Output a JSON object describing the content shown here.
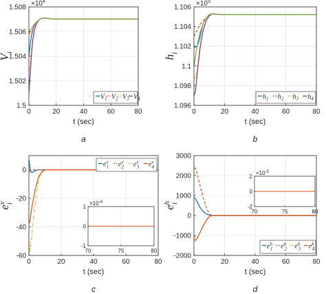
{
  "figure": {
    "colors": [
      "#0072BD",
      "#D95319",
      "#EDB120",
      "#7E2F8E",
      "#77AC30"
    ]
  },
  "chart_data": [
    {
      "type": "line",
      "id": "a",
      "caption": "a",
      "ylabel_main": "V",
      "ylabel_sub": "i",
      "xlabel": "t (sec)",
      "exponent_base": "×10",
      "exponent_power": "4",
      "xlim": [
        0,
        80
      ],
      "ylim": [
        1.5,
        1.508
      ],
      "xticks": [
        0,
        20,
        40,
        60,
        80
      ],
      "yticks": [
        1.5,
        1.502,
        1.504,
        1.506,
        1.508
      ],
      "ytick_labels": [
        "1.5",
        "1.502",
        "1.504",
        "1.506",
        "1.508"
      ],
      "legend_position": "bottom-right",
      "series": [
        {
          "name": "V",
          "sub": "1",
          "style": "solid",
          "color": "#0072BD",
          "x": [
            0,
            1,
            2,
            3,
            4,
            5,
            6,
            7,
            8,
            10,
            12,
            15,
            20,
            30,
            80
          ],
          "y": [
            1.504,
            1.505,
            1.5057,
            1.5062,
            1.5065,
            1.5067,
            1.5068,
            1.5069,
            1.507,
            1.5071,
            1.5071,
            1.50705,
            1.507,
            1.507,
            1.507
          ]
        },
        {
          "name": "V",
          "sub": "2",
          "style": "dashed",
          "color": "#D95319",
          "x": [
            0,
            1,
            2,
            3,
            4,
            5,
            6,
            7,
            8,
            10,
            12,
            15,
            20,
            30,
            80
          ],
          "y": [
            1.506,
            1.5058,
            1.5059,
            1.5062,
            1.5065,
            1.5067,
            1.5068,
            1.5069,
            1.507,
            1.5071,
            1.5071,
            1.50705,
            1.507,
            1.507,
            1.507
          ]
        },
        {
          "name": "V",
          "sub": "3",
          "style": "dashdot",
          "color": "#EDB120",
          "x": [
            0,
            1,
            2,
            3,
            4,
            5,
            6,
            7,
            8,
            10,
            12,
            15,
            20,
            30,
            80
          ],
          "y": [
            1.5028,
            1.5034,
            1.5046,
            1.5055,
            1.5061,
            1.5065,
            1.5067,
            1.5069,
            1.507,
            1.5071,
            1.5071,
            1.50705,
            1.507,
            1.507,
            1.507
          ]
        },
        {
          "name": "V",
          "sub": "4",
          "style": "solid",
          "color": "#7E2F8E",
          "x": [
            0,
            1,
            2,
            3,
            4,
            5,
            6,
            7,
            8,
            10,
            12,
            15,
            20,
            30,
            80
          ],
          "y": [
            1.501,
            1.5026,
            1.5043,
            1.5054,
            1.5061,
            1.5065,
            1.5067,
            1.5069,
            1.507,
            1.5071,
            1.5071,
            1.50705,
            1.507,
            1.507,
            1.507
          ]
        },
        {
          "name": "",
          "sub": "",
          "style": "solid",
          "color": "#77AC30",
          "x": [
            0,
            2,
            4,
            6,
            8,
            10,
            12,
            15,
            20,
            30,
            80
          ],
          "y": [
            1.506,
            1.50625,
            1.5066,
            1.5068,
            1.507,
            1.5071,
            1.5071,
            1.50705,
            1.507,
            1.507,
            1.507
          ]
        }
      ]
    },
    {
      "type": "line",
      "id": "b",
      "caption": "b",
      "ylabel_main": "h",
      "ylabel_sub": "i",
      "xlabel": "t (sec)",
      "exponent_base": "×10",
      "exponent_power": "5",
      "xlim": [
        0,
        80
      ],
      "ylim": [
        1.096,
        1.106
      ],
      "xticks": [
        0,
        20,
        40,
        60,
        80
      ],
      "yticks": [
        1.096,
        1.098,
        1.1,
        1.102,
        1.104,
        1.106
      ],
      "ytick_labels": [
        "1.096",
        "1.098",
        "1.1",
        "1.102",
        "1.104",
        "1.106"
      ],
      "legend_position": "bottom-right",
      "series": [
        {
          "name": "h",
          "sub": "1",
          "style": "solid",
          "color": "#0072BD",
          "x": [
            0,
            1,
            2,
            3,
            4,
            5,
            6,
            8,
            10,
            12,
            15,
            20,
            30,
            80
          ],
          "y": [
            1.102,
            1.1019,
            1.102,
            1.1024,
            1.103,
            1.1037,
            1.1043,
            1.1049,
            1.1052,
            1.1053,
            1.10525,
            1.1052,
            1.1052,
            1.1052
          ]
        },
        {
          "name": "h",
          "sub": "2",
          "style": "dashed",
          "color": "#D95319",
          "x": [
            0,
            1,
            2,
            3,
            4,
            5,
            6,
            8,
            10,
            12,
            15,
            20,
            30,
            80
          ],
          "y": [
            1.103,
            1.1034,
            1.1036,
            1.1039,
            1.1042,
            1.1044,
            1.1046,
            1.1049,
            1.1052,
            1.1053,
            1.10525,
            1.1052,
            1.1052,
            1.1052
          ]
        },
        {
          "name": "h",
          "sub": "3",
          "style": "dashdot",
          "color": "#EDB120",
          "x": [
            0,
            1,
            2,
            3,
            4,
            5,
            6,
            8,
            10,
            12,
            15,
            20,
            30,
            80
          ],
          "y": [
            1.099,
            1.0987,
            1.0995,
            1.1008,
            1.102,
            1.103,
            1.1037,
            1.1046,
            1.1051,
            1.1053,
            1.10525,
            1.1052,
            1.1052,
            1.1052
          ]
        },
        {
          "name": "h",
          "sub": "4",
          "style": "solid",
          "color": "#7E2F8E",
          "x": [
            0,
            1,
            2,
            3,
            4,
            5,
            6,
            8,
            10,
            12,
            15,
            20,
            30,
            80
          ],
          "y": [
            1.097,
            1.0974,
            1.099,
            1.1005,
            1.1018,
            1.1028,
            1.1036,
            1.1046,
            1.1051,
            1.1053,
            1.10525,
            1.1052,
            1.1052,
            1.1052
          ]
        },
        {
          "name": "",
          "sub": "",
          "style": "solid",
          "color": "#77AC30",
          "x": [
            0,
            1,
            2,
            4,
            6,
            8,
            10,
            12,
            15,
            20,
            30,
            80
          ],
          "y": [
            1.1,
            1.101,
            1.102,
            1.1034,
            1.1043,
            1.1049,
            1.1052,
            1.1053,
            1.10525,
            1.1052,
            1.1052,
            1.1052
          ]
        }
      ]
    },
    {
      "type": "line",
      "id": "c",
      "caption": "c",
      "ylabel_main": "e",
      "ylabel_sub": "i",
      "ylabel_sup": "v",
      "xlabel": "t (sec)",
      "xlim": [
        0,
        80
      ],
      "ylim": [
        -60,
        10
      ],
      "xticks": [
        0,
        20,
        40,
        60,
        80
      ],
      "yticks": [
        -60,
        -40,
        -20,
        0
      ],
      "ytick_labels": [
        "-60",
        "-40",
        "-20",
        "0"
      ],
      "legend_position": "top-right",
      "series": [
        {
          "name": "e",
          "sub": "1",
          "sup": "v",
          "style": "solid",
          "color": "#0072BD",
          "x": [
            0,
            0.5,
            1,
            2,
            3,
            4,
            6,
            8,
            10,
            80
          ],
          "y": [
            7,
            3,
            -1,
            -2,
            -1,
            -0.5,
            0,
            0,
            0,
            0
          ]
        },
        {
          "name": "e",
          "sub": "2",
          "sup": "v",
          "style": "dashed",
          "color": "#D95319",
          "x": [
            0,
            1,
            2,
            3,
            4,
            6,
            8,
            10,
            80
          ],
          "y": [
            -1,
            -1,
            -0.5,
            -0.2,
            0,
            0,
            0,
            0,
            0
          ]
        },
        {
          "name": "e",
          "sub": "3",
          "sup": "v",
          "style": "dashdot",
          "color": "#EDB120",
          "x": [
            0,
            0.5,
            1,
            1.5,
            2,
            3,
            4,
            5,
            6,
            7,
            8,
            9,
            10,
            12,
            80
          ],
          "y": [
            -50,
            -57,
            -55,
            -50,
            -44,
            -32,
            -22,
            -14,
            -8,
            -4,
            -2,
            -1,
            0,
            0,
            0
          ]
        },
        {
          "name": "e",
          "sub": "4",
          "sup": "v",
          "style": "solid",
          "color": "#D95319",
          "x": [
            0,
            0.5,
            1,
            2,
            3,
            4,
            5,
            6,
            7,
            8,
            9,
            10,
            12,
            80
          ],
          "y": [
            -37,
            -37,
            -33,
            -25,
            -19,
            -13,
            -9,
            -5,
            -3,
            -1.5,
            -0.5,
            0,
            0,
            0
          ]
        }
      ],
      "inset": {
        "xlim": [
          70,
          80
        ],
        "ylim": [
          -1,
          1
        ],
        "xticks": [
          70,
          75,
          80
        ],
        "yticks": [
          -1,
          0,
          1
        ],
        "ytick_labels": [
          "-1",
          "0",
          "1"
        ],
        "exponent_base": "×10",
        "exponent_power": "-4",
        "value": 0
      }
    },
    {
      "type": "line",
      "id": "d",
      "caption": "d",
      "ylabel_main": "e",
      "ylabel_sub": "i",
      "ylabel_sup": "h",
      "xlabel": "t (sec)",
      "xlim": [
        0,
        80
      ],
      "ylim": [
        -2000,
        3000
      ],
      "xticks": [
        0,
        20,
        40,
        60,
        80
      ],
      "yticks": [
        -2000,
        -1000,
        0,
        1000,
        2000,
        3000
      ],
      "ytick_labels": [
        "-2000",
        "-1000",
        "0",
        "1000",
        "2000",
        "3000"
      ],
      "legend_position": "bottom-right",
      "series": [
        {
          "name": "e",
          "sub": "1",
          "sup": "h",
          "style": "solid",
          "color": "#0072BD",
          "x": [
            0,
            1,
            2,
            3,
            4,
            6,
            8,
            10,
            12,
            80
          ],
          "y": [
            900,
            850,
            700,
            550,
            400,
            200,
            80,
            20,
            0,
            0
          ]
        },
        {
          "name": "e",
          "sub": "2",
          "sup": "h",
          "style": "dashed",
          "color": "#D95319",
          "x": [
            0,
            1,
            2,
            3,
            4,
            5,
            6,
            7,
            8,
            9,
            10,
            11,
            12,
            80
          ],
          "y": [
            2400,
            2350,
            2100,
            1800,
            1500,
            1200,
            900,
            650,
            420,
            250,
            100,
            30,
            0,
            0
          ]
        },
        {
          "name": "e",
          "sub": "3",
          "sup": "h",
          "style": "dashdot",
          "color": "#EDB120",
          "x": [
            0,
            1,
            2,
            3,
            4,
            5,
            6,
            7,
            8,
            9,
            10,
            11,
            12,
            80
          ],
          "y": [
            -1000,
            -1150,
            -1100,
            -1000,
            -850,
            -700,
            -550,
            -400,
            -260,
            -140,
            -60,
            -15,
            0,
            0
          ]
        },
        {
          "name": "e",
          "sub": "4",
          "sup": "h",
          "style": "solid",
          "color": "#D95319",
          "x": [
            0,
            1,
            2,
            3,
            4,
            5,
            6,
            7,
            8,
            9,
            10,
            12,
            80
          ],
          "y": [
            -1200,
            -1250,
            -1150,
            -1000,
            -850,
            -680,
            -520,
            -380,
            -250,
            -140,
            -60,
            0,
            0
          ]
        }
      ],
      "inset": {
        "xlim": [
          70,
          80
        ],
        "ylim": [
          -2,
          2
        ],
        "xticks": [
          70,
          75,
          80
        ],
        "yticks": [
          -2,
          0,
          2
        ],
        "ytick_labels": [
          "-2",
          "0",
          "2"
        ],
        "exponent_base": "×10",
        "exponent_power": "-5",
        "value": 0
      }
    }
  ]
}
